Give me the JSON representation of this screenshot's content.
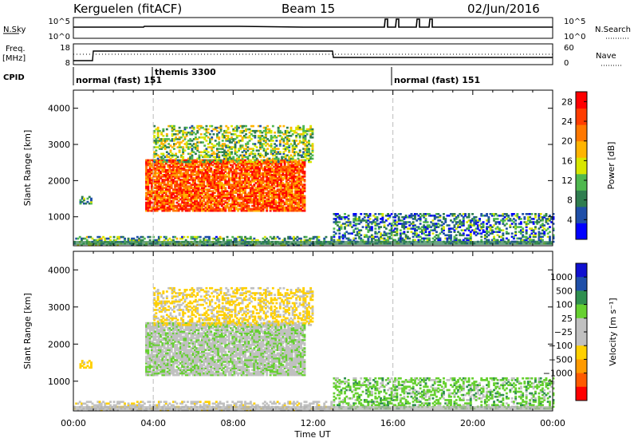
{
  "header": {
    "station": "Kerguelen (fitACF)",
    "beam": "Beam 15",
    "date": "02/Jun/2016"
  },
  "strip": {
    "nsky_label": "N.Sky",
    "nsky_ticks": [
      "10^5",
      "10^0"
    ],
    "nsearch_label": "N.Search",
    "nsearch_ticks": [
      "10^5",
      "10^0"
    ],
    "freq_label": "Freq.",
    "freq_unit": "[MHz]",
    "freq_ticks": [
      "18",
      "8"
    ],
    "nave_label": "Nave",
    "nave_ticks": [
      "60",
      "0"
    ],
    "cpid_label": "CPID",
    "cpid_entries": [
      "normal (fast) 151",
      "themis 3300",
      "normal (fast) 151"
    ]
  },
  "colors": {
    "power": [
      "#0000ff",
      "#1f4fa8",
      "#2f7d4f",
      "#4fb84f",
      "#d8e600",
      "#ffb400",
      "#ff7800",
      "#ff3c00",
      "#ff0000"
    ],
    "velocity": [
      "#ff0000",
      "#ff5a00",
      "#ff9a00",
      "#ffd000",
      "#c0c0c0",
      "#c0c0c0",
      "#66d030",
      "#2f8f4f",
      "#1f4fa8",
      "#1010d0"
    ]
  },
  "chart_data": [
    {
      "type": "heatmap",
      "panel": "power",
      "xlabel": "Time UT",
      "ylabel": "Slant Range [km]",
      "x_ticks": [
        "00:00",
        "04:00",
        "08:00",
        "12:00",
        "16:00",
        "20:00",
        "00:00"
      ],
      "xlim": [
        0,
        24
      ],
      "ylim": [
        200,
        4500
      ],
      "y_ticks": [
        1000,
        2000,
        3000,
        4000
      ],
      "colorbar_label": "Power [dB]",
      "colorbar_ticks": [
        4,
        8,
        12,
        16,
        20,
        24,
        28
      ],
      "colorbar_range": [
        0,
        30
      ],
      "regions": [
        {
          "t0": 3.6,
          "t1": 11.6,
          "r0": 1150,
          "r1": 2550,
          "value": 24
        },
        {
          "t0": 0.3,
          "t1": 0.9,
          "r0": 1350,
          "r1": 1550,
          "value": 10
        },
        {
          "t0": 4.0,
          "t1": 12.0,
          "r0": 2500,
          "r1": 3500,
          "value": 13
        },
        {
          "t0": 13.0,
          "t1": 24.0,
          "r0": 250,
          "r1": 1100,
          "value": 8
        },
        {
          "t0": 0.0,
          "t1": 13.0,
          "r0": 200,
          "r1": 450,
          "value": 10
        }
      ]
    },
    {
      "type": "heatmap",
      "panel": "velocity",
      "xlabel": "Time UT",
      "ylabel": "Slant Range [km]",
      "x_ticks": [
        "00:00",
        "04:00",
        "08:00",
        "12:00",
        "16:00",
        "20:00",
        "00:00"
      ],
      "xlim": [
        0,
        24
      ],
      "ylim": [
        200,
        4500
      ],
      "y_ticks": [
        1000,
        2000,
        3000,
        4000
      ],
      "colorbar_label": "Velocity [m s⁻¹]",
      "colorbar_ticks": [
        "1000",
        "500",
        "100",
        "25",
        "−25",
        "−100",
        "−500",
        "−1000"
      ],
      "regions": [
        {
          "t0": 3.6,
          "t1": 11.6,
          "r0": 1150,
          "r1": 2550,
          "value": 0
        },
        {
          "t0": 0.3,
          "t1": 0.9,
          "r0": 1350,
          "r1": 1550,
          "value": -150
        },
        {
          "t0": 4.0,
          "t1": 12.0,
          "r0": 2500,
          "r1": 3500,
          "value": -120
        },
        {
          "t0": 13.0,
          "t1": 24.0,
          "r0": 250,
          "r1": 1100,
          "value": 60
        },
        {
          "t0": 0.0,
          "t1": 13.0,
          "r0": 200,
          "r1": 450,
          "value": -60
        }
      ]
    }
  ]
}
